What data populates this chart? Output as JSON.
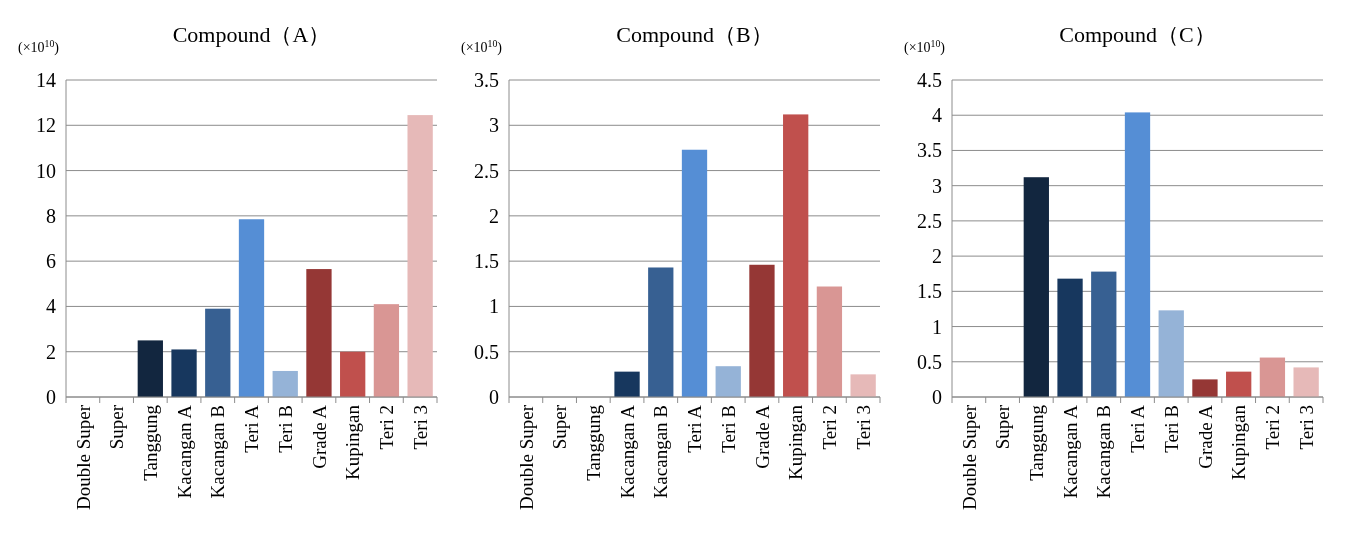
{
  "chart_data": [
    {
      "type": "bar",
      "title": "Compound（A）",
      "ylabel": "(×10$^{10}$)",
      "categories": [
        "Double Super",
        "Super",
        "Tanggung",
        "Kacangan A",
        "Kacangan B",
        "Teri A",
        "Teri B",
        "Grade A",
        "Kupingan",
        "Teri 2",
        "Teri 3"
      ],
      "values": [
        0,
        0,
        2.5,
        2.1,
        3.9,
        7.85,
        1.15,
        5.65,
        2.0,
        4.1,
        12.45
      ],
      "colors": [
        "#12263f",
        "#12263f",
        "#12263f",
        "#17375e",
        "#376092",
        "#558ed5",
        "#95b3d7",
        "#953735",
        "#c0504d",
        "#d99694",
        "#e6b9b8"
      ],
      "ylim": [
        0,
        14
      ],
      "yticks": [
        0,
        2,
        4,
        6,
        8,
        10,
        12,
        14
      ],
      "grid": "y"
    },
    {
      "type": "bar",
      "title": "Compound（B）",
      "ylabel": "(×10$^{10}$)",
      "categories": [
        "Double Super",
        "Super",
        "Tanggung",
        "Kacangan A",
        "Kacangan B",
        "Teri A",
        "Teri B",
        "Grade A",
        "Kupingan",
        "Teri 2",
        "Teri 3"
      ],
      "values": [
        0,
        0,
        0,
        0.28,
        1.43,
        2.73,
        0.34,
        1.46,
        3.12,
        1.22,
        0.25
      ],
      "colors": [
        "#12263f",
        "#12263f",
        "#12263f",
        "#17375e",
        "#376092",
        "#558ed5",
        "#95b3d7",
        "#953735",
        "#c0504d",
        "#d99694",
        "#e6b9b8"
      ],
      "ylim": [
        0,
        3.5
      ],
      "yticks": [
        0,
        0.5,
        1,
        1.5,
        2,
        2.5,
        3,
        3.5
      ],
      "grid": "y"
    },
    {
      "type": "bar",
      "title": "Compound（C）",
      "ylabel": "(×10$^{10}$)",
      "categories": [
        "Double Super",
        "Super",
        "Tanggung",
        "Kacangan A",
        "Kacangan B",
        "Teri A",
        "Teri B",
        "Grade A",
        "Kupingan",
        "Teri 2",
        "Teri 3"
      ],
      "values": [
        0,
        0,
        3.12,
        1.68,
        1.78,
        4.04,
        1.23,
        0.25,
        0.36,
        0.56,
        0.42
      ],
      "colors": [
        "#12263f",
        "#12263f",
        "#12263f",
        "#17375e",
        "#376092",
        "#558ed5",
        "#95b3d7",
        "#953735",
        "#c0504d",
        "#d99694",
        "#e6b9b8"
      ],
      "ylim": [
        0,
        4.5
      ],
      "yticks": [
        0,
        0.5,
        1,
        1.5,
        2,
        2.5,
        3,
        3.5,
        4,
        4.5
      ],
      "grid": "y"
    }
  ]
}
